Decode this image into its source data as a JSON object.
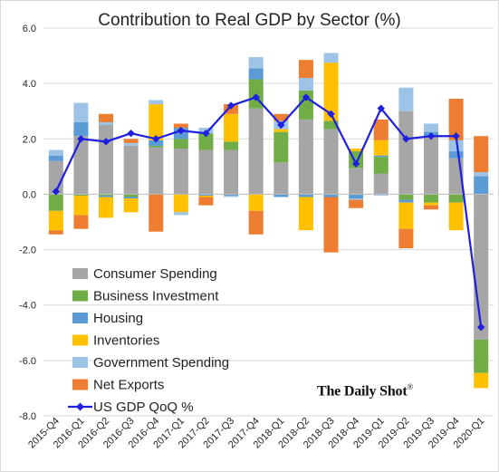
{
  "chart_data": {
    "type": "bar",
    "stacked": true,
    "title": "Contribution to Real GDP by Sector (%)",
    "xlabel": "",
    "ylabel": "",
    "ylim": [
      -8,
      6
    ],
    "yticks": [
      "6.0",
      "4.0",
      "2.0",
      "0.0",
      "-2.0",
      "-4.0",
      "-6.0",
      "-8.0"
    ],
    "yticks_values": [
      6,
      4,
      2,
      0,
      -2,
      -4,
      -6,
      -8
    ],
    "grid": true,
    "legend_position": "bottom-left",
    "categories": [
      "2015-Q4",
      "2016-Q1",
      "2016-Q2",
      "2016-Q3",
      "2016-Q4",
      "2017-Q1",
      "2017-Q2",
      "2017-Q3",
      "2017-Q4",
      "2018-Q1",
      "2018-Q2",
      "2018-Q3",
      "2018-Q4",
      "2019-Q1",
      "2019-Q2",
      "2019-Q3",
      "2019-Q4",
      "2020-Q1"
    ],
    "series": [
      {
        "name": "Consumer Spending",
        "color": "#a6a6a6",
        "values": [
          1.2,
          2.1,
          2.5,
          1.75,
          1.7,
          1.65,
          1.6,
          1.6,
          3.1,
          1.15,
          2.7,
          2.35,
          0.95,
          0.75,
          3.0,
          2.1,
          1.3,
          -5.25
        ]
      },
      {
        "name": "Business Investment",
        "color": "#70ad47",
        "values": [
          -0.6,
          -0.05,
          -0.05,
          -0.1,
          0.05,
          0.35,
          0.6,
          0.3,
          1.05,
          1.1,
          1.05,
          0.3,
          0.6,
          0.6,
          -0.2,
          -0.3,
          -0.3,
          -1.2
        ]
      },
      {
        "name": "Housing",
        "color": "#5b9bd5",
        "values": [
          0.2,
          0.5,
          -0.05,
          -0.05,
          0.2,
          0.4,
          -0.05,
          -0.05,
          0.4,
          -0.1,
          -0.1,
          -0.1,
          -0.15,
          0.05,
          -0.1,
          0.15,
          0.25,
          0.65
        ]
      },
      {
        "name": "Inventories",
        "color": "#ffc000",
        "values": [
          -0.7,
          -0.7,
          -0.75,
          -0.5,
          1.3,
          -0.65,
          -0.05,
          1.0,
          -0.6,
          0.1,
          -1.2,
          2.1,
          0.1,
          0.55,
          -0.95,
          -0.1,
          -1.0,
          -0.55
        ]
      },
      {
        "name": "Government Spending",
        "color": "#9dc3e6",
        "values": [
          0.2,
          0.7,
          0.1,
          0.1,
          0.15,
          -0.1,
          0.2,
          -0.05,
          0.4,
          0.3,
          0.45,
          0.35,
          -0.05,
          -0.05,
          0.85,
          0.3,
          0.4,
          0.15
        ]
      },
      {
        "name": "Net Exports",
        "color": "#ed7d31",
        "values": [
          -0.15,
          -0.5,
          0.3,
          0.15,
          -1.35,
          0.15,
          -0.3,
          0.35,
          -0.85,
          0.25,
          0.65,
          -2.0,
          -0.3,
          0.75,
          -0.7,
          -0.15,
          1.5,
          1.3
        ]
      }
    ],
    "line": {
      "name": "US GDP QoQ %",
      "color": "#1f1fe0",
      "values": [
        0.1,
        2.0,
        1.9,
        2.2,
        2.0,
        2.3,
        2.2,
        3.2,
        3.5,
        2.5,
        3.5,
        2.9,
        1.1,
        3.1,
        2.0,
        2.1,
        2.1,
        -4.8
      ]
    }
  },
  "watermark": "The Daily Shot",
  "watermark_mark": "®"
}
